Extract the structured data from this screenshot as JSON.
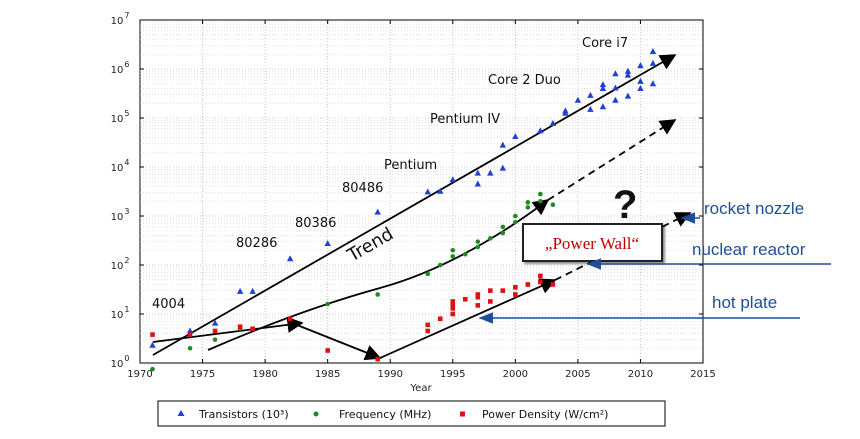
{
  "chart_data": {
    "type": "scatter",
    "xlabel": "Year",
    "xlim": [
      1970,
      2015
    ],
    "ylim_log10": [
      0,
      7
    ],
    "x_ticks": [
      "1970",
      "1975",
      "1980",
      "1985",
      "1990",
      "1995",
      "2000",
      "2005",
      "2010",
      "2015"
    ],
    "y_ticks": [
      {
        "base": "10",
        "exp": "0"
      },
      {
        "base": "10",
        "exp": "1"
      },
      {
        "base": "10",
        "exp": "2"
      },
      {
        "base": "10",
        "exp": "3"
      },
      {
        "base": "10",
        "exp": "4"
      },
      {
        "base": "10",
        "exp": "5"
      },
      {
        "base": "10",
        "exp": "6"
      },
      {
        "base": "10",
        "exp": "7"
      }
    ],
    "grid": true,
    "legend_position": "bottom",
    "series": [
      {
        "name": "Transistors (10³)",
        "marker": "triangle",
        "color": "#1f3fd6",
        "points": [
          [
            1971,
            2.3
          ],
          [
            1974,
            4.5
          ],
          [
            1976,
            6.5
          ],
          [
            1978,
            29
          ],
          [
            1979,
            29
          ],
          [
            1982,
            134
          ],
          [
            1985,
            275
          ],
          [
            1989,
            1200
          ],
          [
            1993,
            3100
          ],
          [
            1994,
            3200
          ],
          [
            1995,
            5500
          ],
          [
            1997,
            4500
          ],
          [
            1997,
            7500
          ],
          [
            1998,
            7500
          ],
          [
            1999,
            9500
          ],
          [
            1999,
            28000
          ],
          [
            2000,
            42000
          ],
          [
            2002,
            55000
          ],
          [
            2003,
            77000
          ],
          [
            2004,
            125000
          ],
          [
            2004,
            140000
          ],
          [
            2005,
            230000
          ],
          [
            2006,
            150000
          ],
          [
            2006,
            290000
          ],
          [
            2007,
            170000
          ],
          [
            2007,
            400000
          ],
          [
            2007,
            480000
          ],
          [
            2008,
            230000
          ],
          [
            2008,
            410000
          ],
          [
            2008,
            800000
          ],
          [
            2009,
            280000
          ],
          [
            2009,
            750000
          ],
          [
            2009,
            900000
          ],
          [
            2010,
            400000
          ],
          [
            2010,
            560000
          ],
          [
            2010,
            1170000
          ],
          [
            2011,
            500000
          ],
          [
            2011,
            1300000
          ],
          [
            2011,
            2270000
          ]
        ]
      },
      {
        "name": "Frequency (MHz)",
        "marker": "circle",
        "color": "#1f8a1f",
        "points": [
          [
            1971,
            0.75
          ],
          [
            1974,
            2
          ],
          [
            1976,
            3
          ],
          [
            1978,
            5
          ],
          [
            1979,
            5
          ],
          [
            1982,
            8
          ],
          [
            1985,
            16
          ],
          [
            1989,
            25
          ],
          [
            1993,
            66
          ],
          [
            1994,
            100
          ],
          [
            1995,
            150
          ],
          [
            1995,
            200
          ],
          [
            1996,
            166
          ],
          [
            1997,
            233
          ],
          [
            1997,
            300
          ],
          [
            1998,
            350
          ],
          [
            1999,
            450
          ],
          [
            1999,
            600
          ],
          [
            2000,
            750
          ],
          [
            2000,
            1000
          ],
          [
            2001,
            1500
          ],
          [
            2001,
            1900
          ],
          [
            2002,
            2000
          ],
          [
            2002,
            2800
          ],
          [
            2003,
            1700
          ]
        ]
      },
      {
        "name": "Power Density (W/cm²)",
        "marker": "square",
        "color": "#e01010",
        "points": [
          [
            1971,
            3.8
          ],
          [
            1974,
            3.8
          ],
          [
            1976,
            4.5
          ],
          [
            1978,
            5.5
          ],
          [
            1979,
            5
          ],
          [
            1982,
            8
          ],
          [
            1985,
            1.8
          ],
          [
            1989,
            1.2
          ],
          [
            1993,
            4.5
          ],
          [
            1993,
            6
          ],
          [
            1994,
            8
          ],
          [
            1995,
            10
          ],
          [
            1995,
            13
          ],
          [
            1995,
            15
          ],
          [
            1995,
            18
          ],
          [
            1996,
            20
          ],
          [
            1997,
            15
          ],
          [
            1997,
            22
          ],
          [
            1997,
            25
          ],
          [
            1998,
            18
          ],
          [
            1998,
            30
          ],
          [
            1999,
            30
          ],
          [
            2000,
            25
          ],
          [
            2000,
            35
          ],
          [
            2001,
            40
          ],
          [
            2002,
            45
          ],
          [
            2002,
            60
          ],
          [
            2003,
            40
          ]
        ]
      }
    ],
    "processor_labels": [
      "4004",
      "80286",
      "80386",
      "80486",
      "Pentium",
      "Pentium IV",
      "Core 2 Duo",
      "Core i7"
    ],
    "trend_label": "Trend",
    "power_wall_label": "„Power Wall“",
    "question_mark": "?",
    "side_labels": [
      "rocket nozzle",
      "nuclear reactor",
      "hot plate"
    ]
  }
}
